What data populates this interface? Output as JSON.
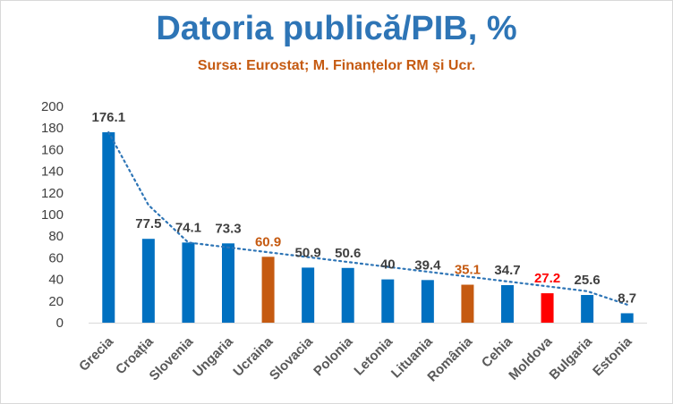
{
  "chart_data": {
    "type": "bar",
    "title": "Datoria publică/PIB, %",
    "subtitle": "Sursa: Eurostat;  M. Finanțelor RM și Ucr.",
    "categories": [
      "Grecia",
      "Croația",
      "Slovenia",
      "Ungaria",
      "Ucraina",
      "Slovacia",
      "Polonia",
      "Letonia",
      "Lituania",
      "România",
      "Cehia",
      "Moldova",
      "Bulgaria",
      "Estonia"
    ],
    "values": [
      176.1,
      77.5,
      74.1,
      73.3,
      60.9,
      50.9,
      50.6,
      40,
      39.4,
      35.1,
      34.7,
      27.2,
      25.6,
      8.7
    ],
    "value_labels": [
      "176.1",
      "77.5",
      "74.1",
      "73.3",
      "60.9",
      "50.9",
      "50.6",
      "40",
      "39.4",
      "35.1",
      "34.7",
      "27.2",
      "25.6",
      "8.7"
    ],
    "bar_colors": [
      "#0070c0",
      "#0070c0",
      "#0070c0",
      "#0070c0",
      "#c55a11",
      "#0070c0",
      "#0070c0",
      "#0070c0",
      "#0070c0",
      "#c55a11",
      "#0070c0",
      "#ff0000",
      "#0070c0",
      "#0070c0"
    ],
    "label_colors": [
      "#404040",
      "#404040",
      "#404040",
      "#404040",
      "#c55a11",
      "#404040",
      "#404040",
      "#404040",
      "#404040",
      "#c55a11",
      "#404040",
      "#ff0000",
      "#404040",
      "#404040"
    ],
    "ylim": [
      0,
      200
    ],
    "yticks": [
      0,
      20,
      40,
      60,
      80,
      100,
      120,
      140,
      160,
      180,
      200
    ],
    "grid": false,
    "trendline": {
      "style": "dotted",
      "color": "#2e75b6"
    },
    "legend": "none"
  }
}
